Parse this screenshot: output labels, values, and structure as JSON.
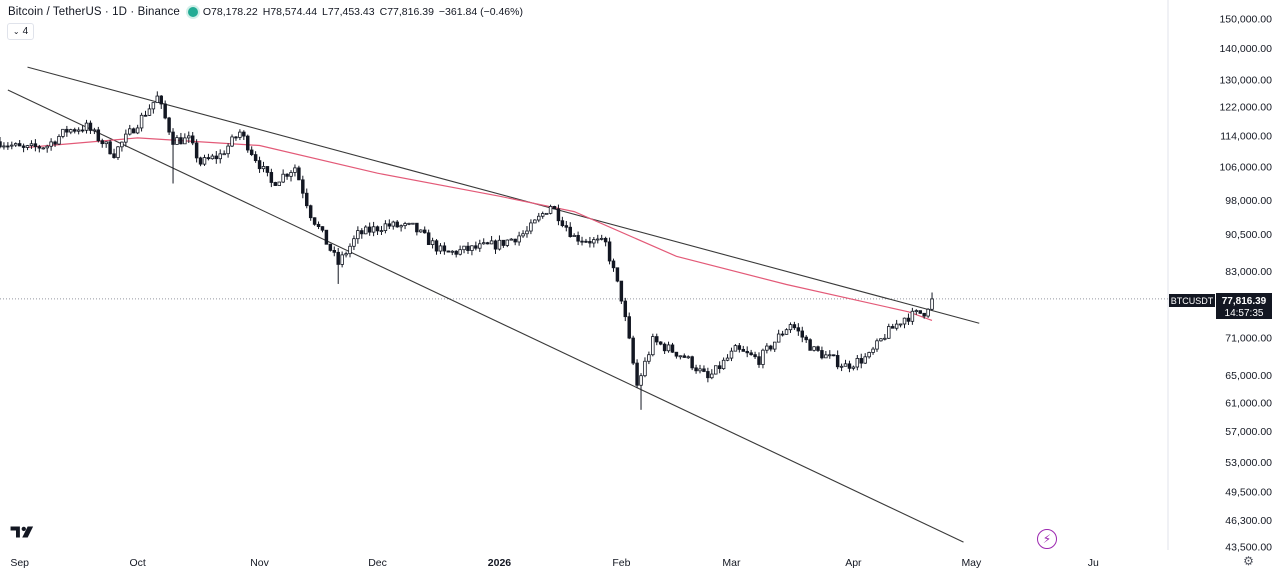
{
  "legend": {
    "title": "Bitcoin / TetherUS · 1D · Binance",
    "open_label": "O",
    "open": "78,178.22",
    "high_label": "H",
    "high": "78,574.44",
    "low_label": "L",
    "low": "77,453.43",
    "close_label": "C",
    "close": "77,816.39",
    "change": "−361.84 (−0.46%)"
  },
  "indicator_toggle": {
    "count": "4",
    "icon": "chevron-down-icon"
  },
  "price_tag": {
    "symbol": "BTCUSDT",
    "price": "77,816.39",
    "countdown": "14:57:35"
  },
  "icons": {
    "logo": "tradingview-logo",
    "bolt": "lightning-icon",
    "settings": "gear-icon"
  },
  "colors": {
    "up": "#ffffff",
    "down": "#131722",
    "ma": "#e35a78",
    "trendline": "#3a3a3a"
  },
  "chart_data": {
    "type": "candlestick",
    "symbol": "Bitcoin / TetherUS",
    "interval": "1D",
    "exchange": "Binance",
    "y_scale": "log",
    "ylim": [
      43500,
      150000
    ],
    "yticks": [
      150000,
      140000,
      130000,
      122000,
      114000,
      106000,
      98000,
      90500,
      83000,
      71000,
      65000,
      61000,
      57000,
      53000,
      49500,
      46300,
      43500
    ],
    "ytick_labels": [
      "150,000.00",
      "140,000.00",
      "130,000.00",
      "122,000.00",
      "114,000.00",
      "106,000.00",
      "98,000.00",
      "90,500.00",
      "83,000.00",
      "71,000.00",
      "65,000.00",
      "61,000.00",
      "57,000.00",
      "53,000.00",
      "49,500.00",
      "46,300.00",
      "43,500.00"
    ],
    "xlim": [
      "2025-08-27",
      "2026-06-20"
    ],
    "xticks": [
      "2025-09-01",
      "2025-10-01",
      "2025-11-01",
      "2025-12-01",
      "2026-01-01",
      "2026-02-01",
      "2026-03-01",
      "2026-04-01",
      "2026-05-01",
      "2026-06-01"
    ],
    "xtick_labels": [
      "Sep",
      "Oct",
      "Nov",
      "Dec",
      "2026",
      "Feb",
      "Mar",
      "Apr",
      "May",
      "Ju"
    ],
    "anchors": [
      [
        "2025-08-27",
        112500
      ],
      [
        "2025-09-02",
        110500
      ],
      [
        "2025-09-08",
        111500
      ],
      [
        "2025-09-13",
        115500
      ],
      [
        "2025-09-18",
        116500
      ],
      [
        "2025-09-25",
        109500
      ],
      [
        "2025-10-02",
        119000
      ],
      [
        "2025-10-06",
        124800
      ],
      [
        "2025-10-10",
        113000
      ],
      [
        "2025-10-14",
        113000
      ],
      [
        "2025-10-17",
        107000
      ],
      [
        "2025-10-22",
        109000
      ],
      [
        "2025-10-27",
        115000
      ],
      [
        "2025-11-04",
        102000
      ],
      [
        "2025-11-10",
        106000
      ],
      [
        "2025-11-14",
        95000
      ],
      [
        "2025-11-21",
        84500
      ],
      [
        "2025-11-26",
        90500
      ],
      [
        "2025-12-03",
        92500
      ],
      [
        "2025-12-10",
        92000
      ],
      [
        "2025-12-18",
        86500
      ],
      [
        "2025-12-25",
        87500
      ],
      [
        "2026-01-01",
        88500
      ],
      [
        "2026-01-08",
        91000
      ],
      [
        "2026-01-14",
        97000
      ],
      [
        "2026-01-20",
        90000
      ],
      [
        "2026-01-28",
        88500
      ],
      [
        "2026-02-01",
        78000
      ],
      [
        "2026-02-05",
        63500
      ],
      [
        "2026-02-09",
        70500
      ],
      [
        "2026-02-17",
        68000
      ],
      [
        "2026-02-23",
        64500
      ],
      [
        "2026-03-02",
        69000
      ],
      [
        "2026-03-08",
        67500
      ],
      [
        "2026-03-16",
        73500
      ],
      [
        "2026-03-22",
        69000
      ],
      [
        "2026-03-30",
        66500
      ],
      [
        "2026-04-05",
        68000
      ],
      [
        "2026-04-09",
        71500
      ],
      [
        "2026-04-14",
        74500
      ],
      [
        "2026-04-19",
        75500
      ],
      [
        "2026-04-21",
        77816
      ]
    ],
    "extreme_wicks": [
      {
        "date": "2025-10-10",
        "low": 102000
      },
      {
        "date": "2025-11-21",
        "low": 80600
      },
      {
        "date": "2026-02-06",
        "low": 60000
      },
      {
        "date": "2026-04-21",
        "high": 79000
      }
    ],
    "moving_average": {
      "points": [
        [
          "2025-09-03",
          111000
        ],
        [
          "2025-10-01",
          113500
        ],
        [
          "2025-11-01",
          111500
        ],
        [
          "2025-12-01",
          104500
        ],
        [
          "2026-01-01",
          99000
        ],
        [
          "2026-01-20",
          95500
        ],
        [
          "2026-02-15",
          86000
        ],
        [
          "2026-03-15",
          80500
        ],
        [
          "2026-04-15",
          75500
        ],
        [
          "2026-04-21",
          74000
        ]
      ]
    },
    "trendlines": [
      {
        "from": [
          "2025-09-03",
          134000
        ],
        "to": [
          "2026-05-03",
          73500
        ]
      },
      {
        "from": [
          "2025-08-29",
          127000
        ],
        "to": [
          "2026-04-29",
          44000
        ]
      }
    ],
    "last_price": 77816.39,
    "last_price_line": "dotted"
  }
}
